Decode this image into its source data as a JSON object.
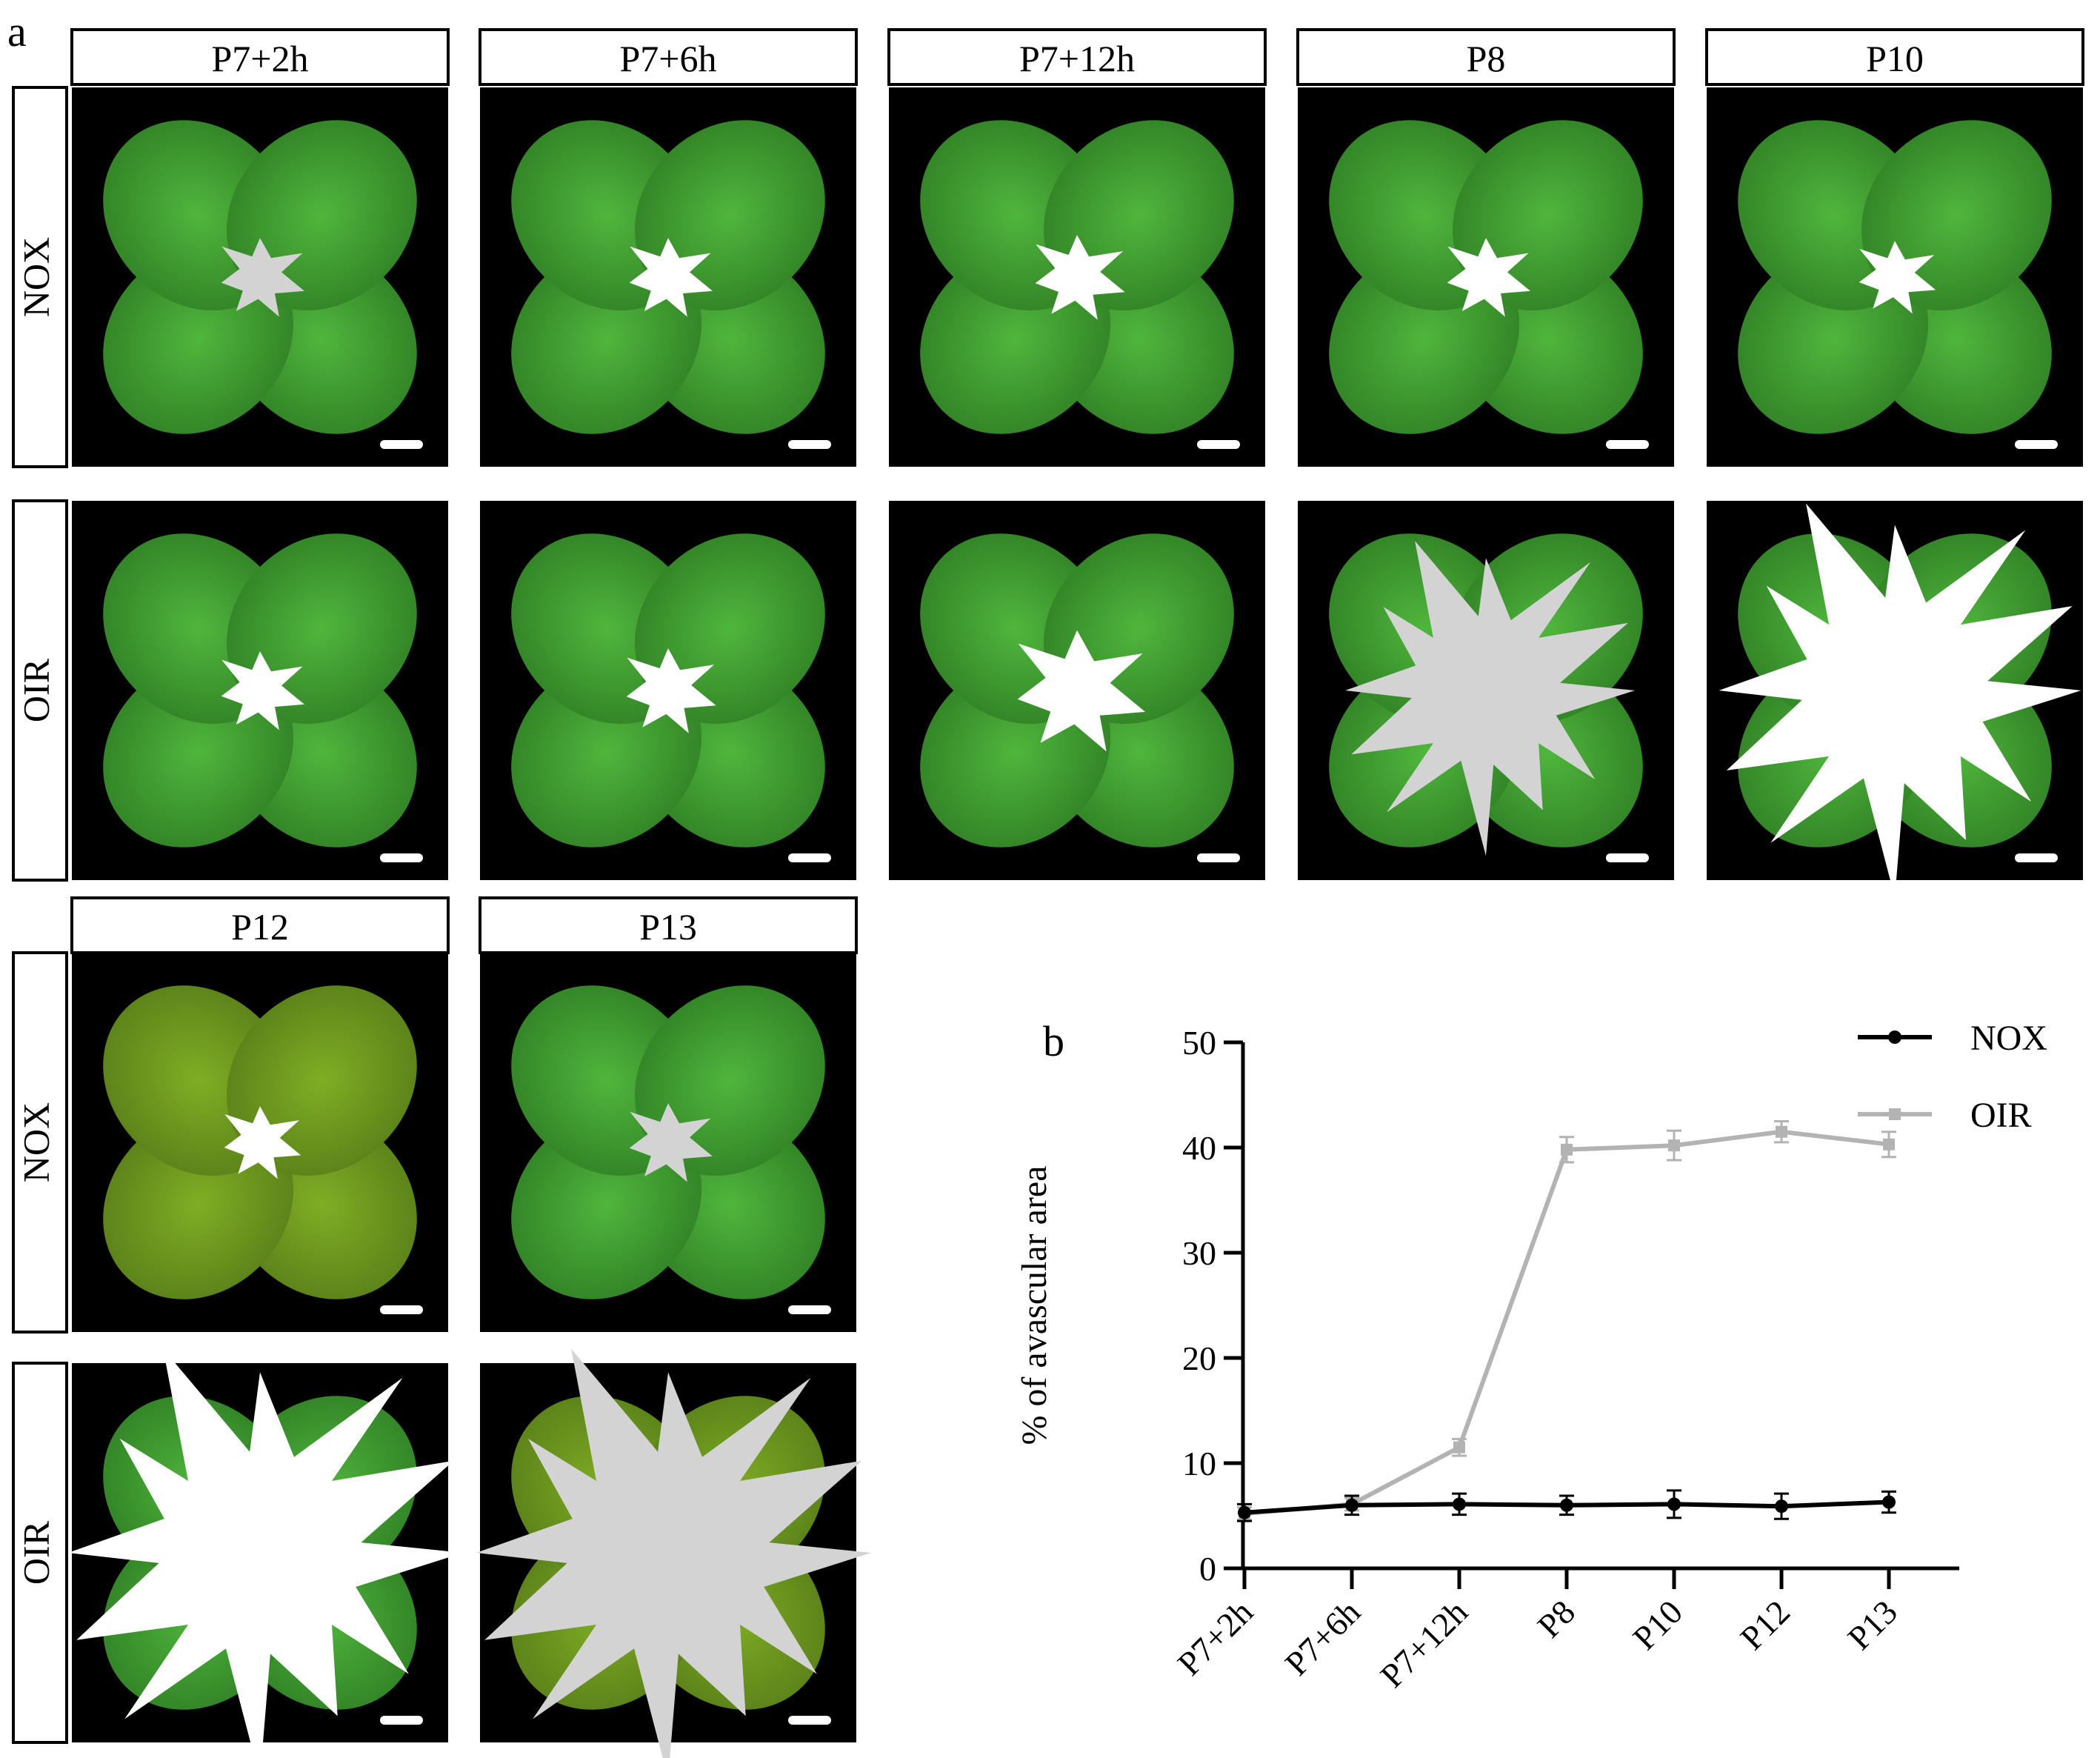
{
  "figure": {
    "panel_a_letter": "a",
    "panel_b_letter": "b",
    "timepoints": [
      "P7+2h",
      "P7+6h",
      "P7+12h",
      "P8",
      "P10",
      "P12",
      "P13"
    ],
    "conditions": [
      "NOX",
      "OIR",
      "NOX",
      "OIR"
    ],
    "colors": {
      "retina_green": "#3f9a2f",
      "retina_yellow_green": "#6f9a1f",
      "avascular_white": "#ffffff",
      "avascular_gray": "#d3d3d3",
      "nox_line": "#000000",
      "oir_line": "#b3b3b3"
    }
  },
  "chart_data": {
    "type": "line",
    "title": "",
    "xlabel": "",
    "ylabel": "% of avascular area",
    "categories": [
      "P7+2h",
      "P7+6h",
      "P7+12h",
      "P8",
      "P10",
      "P12",
      "P13"
    ],
    "ylim": [
      0,
      50
    ],
    "yticks": [
      "0",
      "10",
      "20",
      "30",
      "40",
      "50"
    ],
    "legend_position": "top-right",
    "grid": false,
    "series": [
      {
        "name": "NOX",
        "color": "#000000",
        "marker": "circle",
        "values": [
          5.3,
          6.0,
          6.1,
          6.0,
          6.1,
          5.9,
          6.3
        ],
        "errors": [
          0.8,
          0.9,
          1.0,
          0.9,
          1.3,
          1.2,
          1.0
        ]
      },
      {
        "name": "OIR",
        "color": "#b3b3b3",
        "marker": "square",
        "values": [
          5.2,
          6.1,
          11.5,
          39.8,
          40.2,
          41.5,
          40.3
        ],
        "errors": [
          0.6,
          0.6,
          0.8,
          1.2,
          1.4,
          1.0,
          1.2
        ]
      }
    ]
  }
}
